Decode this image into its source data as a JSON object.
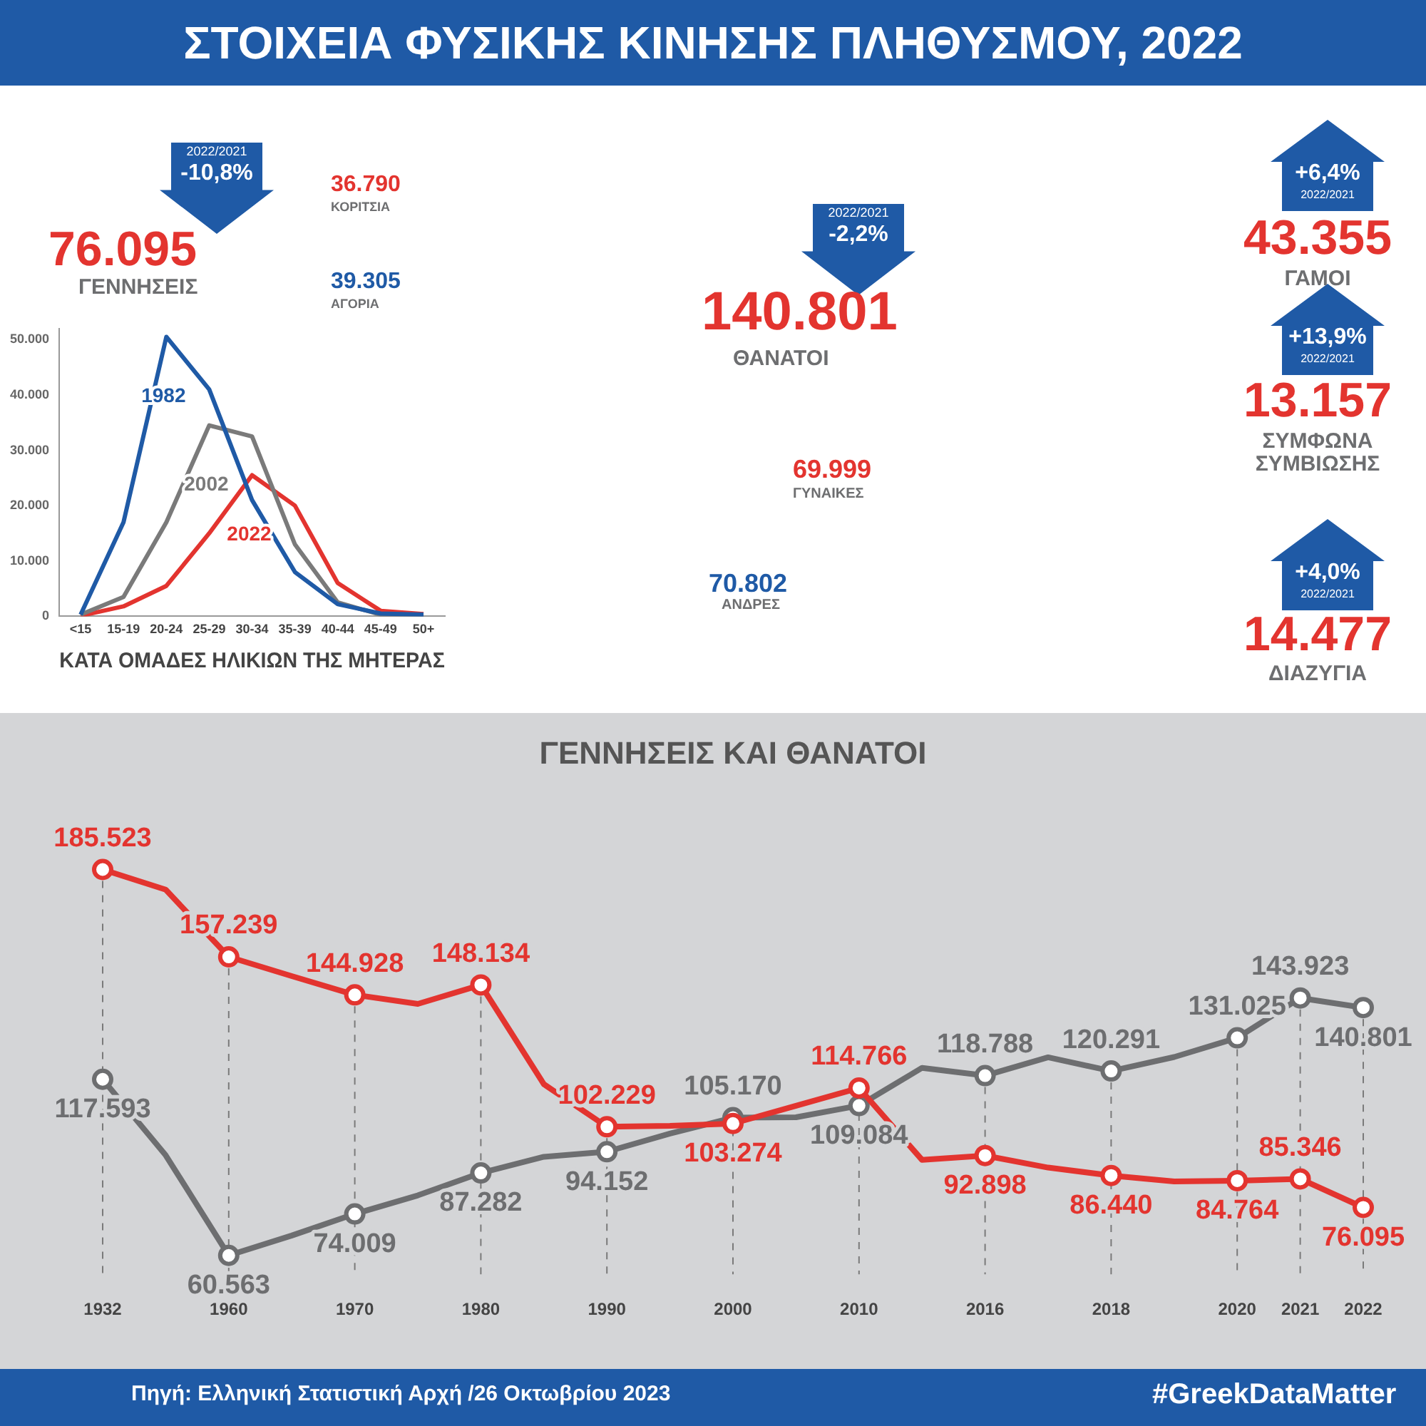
{
  "chart_data": [
    {
      "type": "other",
      "title": "ΣΤΟΙΧΕΙΑ ΦΥΣΙΚΗΣ ΚΙΝΗΣΗΣ ΠΛΗΘΥΣΜΟΥ, 2022",
      "annotations": [
        "2022/2021",
        "-10,8%",
        "76.095",
        "ΓΕΝΝΗΣΕΙΣ",
        "36.790",
        "ΚΟΡΙΤΣΙΑ",
        "39.305",
        "ΑΓΟΡΙΑ",
        "2022/2021",
        "-2,2%",
        "140.801",
        "ΘΑΝΑΤΟΙ",
        "69.999",
        "ΓΥΝΑΙΚΕΣ",
        "70.802",
        "ΑΝΔΡΕΣ",
        "+6,4%",
        "2022/2021",
        "43.355",
        "ΓΑΜΟΙ",
        "+13,9%",
        "2022/2021",
        "13.157",
        "ΣΥΜΦΩΝΑ ΣΥΜΒΙΩΣΗΣ",
        "+4,0%",
        "2022/2021",
        "14.477",
        "ΔΙΑΖΥΓΙΑ",
        "Πηγή: Ελληνική Στατιστική Αρχή  /26 Οκτωβρίου 2023",
        "#GreekDataMatter"
      ]
    },
    {
      "type": "line",
      "xlabel": "ΚΑΤΑ ΟΜΑΔΕΣ ΗΛΙΚΙΩΝ ΤΗΣ ΜΗΤΕΡΑΣ",
      "categories": [
        "<15",
        "15-19",
        "20-24",
        "25-29",
        "30-34",
        "35-39",
        "40-44",
        "45-49",
        "50+"
      ],
      "series": [
        {
          "name": "1982",
          "color": "#1f5aa6",
          "values": [
            300,
            17000,
            50500,
            41000,
            21000,
            8000,
            2200,
            500,
            300
          ]
        },
        {
          "name": "2002",
          "color": "#7a7a7a",
          "values": [
            300,
            3500,
            17000,
            34500,
            32500,
            13000,
            2500,
            300,
            200
          ]
        },
        {
          "name": "2022",
          "color": "#e3342f",
          "values": [
            100,
            1800,
            5500,
            15000,
            25500,
            20000,
            6000,
            1000,
            400
          ]
        }
      ],
      "ylim": [
        0,
        52000
      ],
      "yticks": [
        {
          "value": 0,
          "label": "0"
        },
        {
          "value": 10000,
          "label": "10.000"
        },
        {
          "value": 20000,
          "label": "20.000"
        },
        {
          "value": 30000,
          "label": "30.000"
        },
        {
          "value": 40000,
          "label": "40.000"
        },
        {
          "value": 50000,
          "label": "50.000"
        }
      ],
      "legend": false,
      "grid": false,
      "marker": "none",
      "line_style": "solid"
    },
    {
      "type": "line",
      "title": "ΓΕΝΝΗΣΕΙΣ ΚΑΙ ΘΑΝΑΤΟΙ",
      "categories": [
        "1932",
        null,
        "1960",
        null,
        "1970",
        null,
        "1980",
        null,
        "1990",
        null,
        "2000",
        null,
        "2010",
        null,
        "2016",
        null,
        "2018",
        null,
        "2020",
        "2021",
        "2022"
      ],
      "series": [
        {
          "color": "#e3342f",
          "values": [
            185523,
            179000,
            157239,
            151000,
            144928,
            142000,
            148134,
            116000,
            102229,
            102500,
            103274,
            109000,
            114766,
            91500,
            92898,
            89000,
            86440,
            84500,
            84764,
            85346,
            76095
          ],
          "value_labels": [
            "185.523",
            null,
            "157.239",
            null,
            "144.928",
            null,
            "148.134",
            null,
            "102.229",
            null,
            "103.274",
            null,
            "114.766",
            null,
            "92.898",
            null,
            "86.440",
            null,
            "84.764",
            "85.346",
            "76.095"
          ]
        },
        {
          "color": "#6d6e70",
          "values": [
            117593,
            93000,
            60563,
            67000,
            74009,
            80000,
            87282,
            92500,
            94152,
            100000,
            105170,
            105300,
            109084,
            121300,
            118788,
            124700,
            120291,
            124800,
            131025,
            143923,
            140801
          ],
          "value_labels": [
            "117.593",
            null,
            "60.563",
            null,
            "74.009",
            null,
            "87.282",
            null,
            "94.152",
            null,
            "105.170",
            null,
            "109.084",
            null,
            "118.788",
            null,
            "120.291",
            null,
            "131.025",
            "143.923",
            "140.801"
          ]
        }
      ],
      "tick_labels": "x",
      "legend": false,
      "grid": "x",
      "marker": "circle",
      "line_style": "solid"
    }
  ]
}
